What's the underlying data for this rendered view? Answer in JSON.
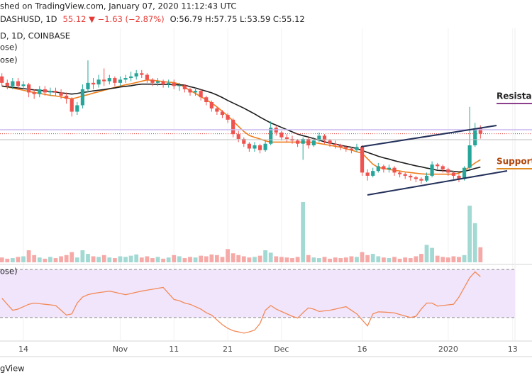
{
  "header": {
    "line1": "shed on TradingView.com, January 07, 2020 11:12:43 UTC",
    "symbol": "DASHUSD, 1D",
    "change": "55.12 ▼ −1.63 (−2.87%)",
    "ohlc": "O:56.79 H:57.75 L:53.59 C:55.12",
    "source": "D, 1D, COINBASE"
  },
  "footer": "gView",
  "chart_data": {
    "type": "candlestick",
    "categories": [
      null,
      null,
      null,
      null,
      "14",
      null,
      null,
      null,
      null,
      null,
      null,
      null,
      null,
      null,
      null,
      null,
      null,
      null,
      null,
      null,
      null,
      null,
      "Nov",
      null,
      null,
      null,
      null,
      null,
      null,
      null,
      null,
      null,
      "11",
      null,
      null,
      null,
      null,
      null,
      null,
      null,
      null,
      null,
      "21",
      null,
      null,
      null,
      null,
      null,
      null,
      null,
      null,
      null,
      "Dec",
      null,
      null,
      null,
      null,
      null,
      null,
      null,
      null,
      null,
      null,
      null,
      null,
      null,
      null,
      "16",
      null,
      null,
      null,
      null,
      null,
      null,
      null,
      null,
      null,
      null,
      null,
      null,
      null,
      null,
      null,
      "2020",
      null,
      null,
      null,
      null,
      null,
      null,
      null,
      null,
      null,
      null,
      null,
      "13"
    ],
    "open": [
      73,
      71,
      70,
      71.5,
      70,
      70.5,
      68,
      67.5,
      69,
      68,
      68.5,
      68,
      67,
      66,
      62,
      64,
      69,
      71,
      70.5,
      72,
      71.5,
      72.5,
      71,
      72,
      72.5,
      73,
      74,
      73.5,
      72,
      71,
      71.5,
      70.5,
      71,
      70,
      70.2,
      69,
      68,
      68.5,
      66.5,
      65,
      63,
      62,
      61,
      59.5,
      55,
      53.5,
      52,
      50.5,
      51.5,
      50,
      52,
      57,
      55.5,
      54,
      53.5,
      53,
      52,
      53.5,
      51.5,
      53,
      54.5,
      53,
      52,
      51.5,
      51,
      50.5,
      50,
      51,
      43,
      42,
      43.5,
      45,
      44,
      44.5,
      43,
      42.5,
      42,
      41.5,
      41,
      40.5,
      42,
      45.5,
      45,
      44,
      43,
      42,
      41,
      44.5,
      51.5,
      56.79,
      null,
      null,
      null,
      null,
      null,
      null
    ],
    "high": [
      74,
      72,
      72.5,
      72.5,
      71.5,
      71,
      69,
      70,
      70,
      69.5,
      69.5,
      69,
      68,
      66.5,
      65,
      70.5,
      78,
      72.5,
      73.5,
      75.5,
      73.5,
      73,
      73,
      73.5,
      74.5,
      75,
      75,
      74,
      72.5,
      72.5,
      72,
      72,
      72,
      71,
      70.5,
      69.5,
      69.5,
      69,
      67,
      65.5,
      63.5,
      62.5,
      61.5,
      60,
      56,
      54,
      52.5,
      52.5,
      52,
      53,
      59,
      57.5,
      56,
      55,
      54.5,
      53.5,
      54,
      54,
      54,
      55.5,
      55,
      53.5,
      53,
      52,
      51.5,
      51,
      52,
      51.5,
      44,
      44.5,
      46,
      45.5,
      45.5,
      45,
      43.5,
      43,
      42.5,
      42,
      41.5,
      43,
      46.5,
      46,
      45.5,
      44.5,
      43.5,
      42.5,
      45,
      63.5,
      58.5,
      57.75,
      null,
      null,
      null,
      null,
      null,
      null
    ],
    "low": [
      70,
      69,
      69,
      69,
      69,
      66.5,
      66,
      66.5,
      67,
      67,
      67,
      66,
      64.5,
      60.5,
      61,
      63,
      68,
      69,
      69.5,
      70,
      70.5,
      70,
      70,
      71,
      71.5,
      72,
      72.5,
      71,
      70,
      70,
      69.5,
      69.5,
      69,
      68.5,
      68,
      67,
      67,
      65.5,
      64,
      62,
      61,
      60,
      58.5,
      54,
      52.5,
      51,
      49.5,
      49.5,
      49,
      49.5,
      51.5,
      54.5,
      53,
      52.5,
      52,
      51,
      47,
      50.5,
      51,
      52.5,
      52,
      51,
      50.5,
      50,
      49.5,
      49,
      49.5,
      42,
      40.5,
      41.5,
      43,
      43,
      43,
      42,
      41.5,
      41,
      40.5,
      40,
      39.5,
      40,
      41.5,
      44,
      43,
      42,
      41,
      40,
      40.5,
      44,
      51,
      53.59,
      null,
      null,
      null,
      null,
      null,
      null
    ],
    "close": [
      71,
      70,
      71.5,
      70,
      70.5,
      68,
      67.5,
      69,
      68,
      68.5,
      68,
      67,
      66,
      62,
      64,
      69,
      71,
      70.5,
      72,
      71.5,
      72.5,
      71,
      72,
      72.5,
      73,
      74,
      73.5,
      72,
      71,
      71.5,
      70.5,
      71,
      70,
      70.2,
      69,
      68,
      68.5,
      66.5,
      65,
      63,
      62,
      61,
      59.5,
      55,
      53.5,
      52,
      50.5,
      51.5,
      50,
      52,
      57,
      55.5,
      54,
      53.5,
      53,
      52,
      53.5,
      51.5,
      53,
      54.5,
      53,
      52,
      51.5,
      51,
      50.5,
      50,
      51,
      43,
      42,
      43.5,
      45,
      44,
      44.5,
      43,
      42.5,
      42,
      41.5,
      41,
      40.5,
      42,
      45.5,
      45,
      44,
      43,
      42,
      41,
      44.5,
      51.5,
      56.79,
      55.12,
      null,
      null,
      null,
      null,
      null,
      null
    ],
    "ylim": [
      15,
      88
    ],
    "up_color": "#26a69a",
    "down_color": "#ef5350",
    "last_price_color": "#e53935",
    "series": [
      {
        "name": "ose)",
        "color": "#ef7d1a",
        "values": [
          70,
          69.7,
          69.4,
          69,
          68.7,
          68.3,
          68,
          67.7,
          67.4,
          67.1,
          66.9,
          66.6,
          66.3,
          66,
          66.4,
          66.9,
          67.3,
          67.8,
          68.2,
          68.7,
          69.1,
          69.6,
          70,
          70.4,
          70.7,
          71.1,
          71.5,
          71.9,
          71.8,
          71.6,
          71.4,
          71.2,
          71.1,
          70.6,
          69.6,
          68.6,
          67.7,
          66.7,
          65.7,
          64.7,
          63.5,
          62.1,
          60.7,
          59.1,
          57.4,
          55.8,
          54.6,
          54,
          53.5,
          52.9,
          52.5,
          52.5,
          52.5,
          52.5,
          52.5,
          52.5,
          52.5,
          52.5,
          52.4,
          52.1,
          51.8,
          51.5,
          51.2,
          50.9,
          50.4,
          50,
          49.5,
          49,
          47.3,
          45.6,
          44.6,
          44.3,
          44,
          43.7,
          43.5,
          43.2,
          43,
          42.8,
          42.6,
          42.5,
          42.5,
          42.5,
          42.5,
          42.5,
          42.5,
          42.8,
          43.6,
          44.8,
          46,
          47,
          null,
          null,
          null,
          null,
          null,
          null
        ]
      },
      {
        "name": "ose)",
        "color": "#1c1c1c",
        "values": [
          70,
          69.8,
          69.6,
          69.4,
          69.2,
          69,
          68.8,
          68.7,
          68.5,
          68.3,
          68.1,
          67.9,
          67.7,
          67.5,
          67.7,
          68,
          68.2,
          68.5,
          68.7,
          68.9,
          69.2,
          69.4,
          69.7,
          69.9,
          70.1,
          70.4,
          70.6,
          70.6,
          70.6,
          70.5,
          70.5,
          70.5,
          70.4,
          70.4,
          70.3,
          69.8,
          69.4,
          68.9,
          68.4,
          67.9,
          67.2,
          66.4,
          65.5,
          64.7,
          63.9,
          63.1,
          62.2,
          61.3,
          60.3,
          59.4,
          58.5,
          57.8,
          57.1,
          56.4,
          55.7,
          55,
          54.5,
          54.1,
          53.6,
          53.1,
          52.6,
          52.2,
          51.9,
          51.5,
          51.2,
          50.9,
          50.5,
          49.9,
          49.3,
          48.7,
          48.1,
          47.6,
          47.2,
          46.7,
          46.3,
          45.9,
          45.5,
          45.1,
          44.8,
          44.4,
          44.1,
          43.7,
          43.6,
          43.5,
          43.4,
          43.2,
          43.4,
          43.8,
          44.3,
          44.7,
          null,
          null,
          null,
          null,
          null,
          null
        ]
      }
    ],
    "volume": {
      "ylim": [
        0,
        100
      ],
      "up_color": "#a3d9d3",
      "down_color": "#f5aaa8",
      "values": [
        8,
        6,
        7,
        9,
        10,
        20,
        12,
        8,
        6,
        9,
        7,
        10,
        12,
        17,
        8,
        20,
        14,
        10,
        9,
        12,
        8,
        7,
        10,
        9,
        11,
        13,
        8,
        10,
        7,
        9,
        6,
        8,
        12,
        10,
        7,
        9,
        8,
        11,
        10,
        13,
        12,
        9,
        22,
        15,
        12,
        10,
        8,
        9,
        11,
        20,
        16,
        10,
        9,
        8,
        7,
        9,
        100,
        12,
        8,
        7,
        9,
        6,
        8,
        7,
        8,
        10,
        9,
        17,
        12,
        14,
        10,
        8,
        7,
        9,
        6,
        8,
        7,
        10,
        14,
        29,
        24,
        11,
        9,
        8,
        10,
        9,
        12,
        94,
        65,
        25,
        null,
        null,
        null,
        null,
        null,
        null
      ]
    },
    "rsi": {
      "name": "ose)",
      "color": "#f28a58",
      "band_color": "#f1e5fb",
      "ylim": [
        11,
        73
      ],
      "bands": [
        30,
        70
      ],
      "values": [
        46,
        41,
        36,
        37,
        39,
        41,
        42,
        41.5,
        41,
        40.5,
        40,
        36,
        32,
        33,
        42,
        47,
        49,
        50,
        50.7,
        51.3,
        52,
        51,
        50,
        49,
        50,
        51,
        52,
        52.8,
        53.5,
        54.3,
        55,
        50,
        45,
        44,
        42,
        41,
        39,
        37,
        34,
        32,
        28,
        24,
        21,
        19,
        18,
        17,
        18,
        19.5,
        25,
        36,
        40,
        37,
        35,
        33,
        31,
        29.5,
        34,
        38,
        37,
        35,
        35.5,
        36,
        37,
        38,
        39,
        36,
        33,
        28,
        23,
        33,
        34.7,
        34.5,
        34.2,
        33.8,
        32.5,
        31.2,
        30,
        31,
        37,
        42,
        42,
        39.5,
        40,
        40.5,
        41,
        47,
        55,
        63,
        68,
        64,
        null,
        null,
        null,
        null,
        null,
        null
      ]
    },
    "annotations": [
      "Resistan",
      "Support"
    ]
  }
}
